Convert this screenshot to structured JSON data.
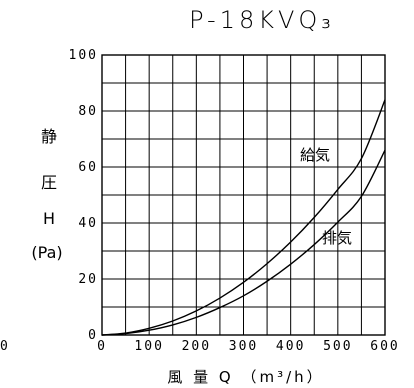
{
  "chart_data": {
    "type": "line",
    "title": "P-18KVQ₃",
    "xlabel": "風 量 Q （m³/h）",
    "ylabel": [
      "静",
      "圧",
      "H",
      "(Pa)"
    ],
    "xlim": [
      0,
      600
    ],
    "ylim": [
      0,
      100
    ],
    "x_ticks": [
      "0",
      "100",
      "200",
      "300",
      "400",
      "500",
      "600"
    ],
    "y_ticks": [
      "0",
      "20",
      "40",
      "60",
      "80",
      "100"
    ],
    "x_grid_step": 50,
    "y_grid_step": 10,
    "grid": true,
    "series": [
      {
        "name": "給気",
        "x": [
          0,
          50,
          100,
          150,
          200,
          250,
          300,
          350,
          400,
          450,
          500,
          550,
          600
        ],
        "y": [
          0,
          0.7,
          2.4,
          5.0,
          8.6,
          13.2,
          18.8,
          25.5,
          33.2,
          42.0,
          52.0,
          63.0,
          84.0
        ]
      },
      {
        "name": "排気",
        "x": [
          0,
          50,
          100,
          150,
          200,
          250,
          300,
          350,
          400,
          450,
          500,
          550,
          600
        ],
        "y": [
          0,
          0.5,
          1.7,
          3.6,
          6.3,
          9.8,
          14.0,
          19.2,
          25.3,
          32.3,
          40.3,
          49.5,
          66.0
        ]
      }
    ],
    "edge_label": "0"
  }
}
